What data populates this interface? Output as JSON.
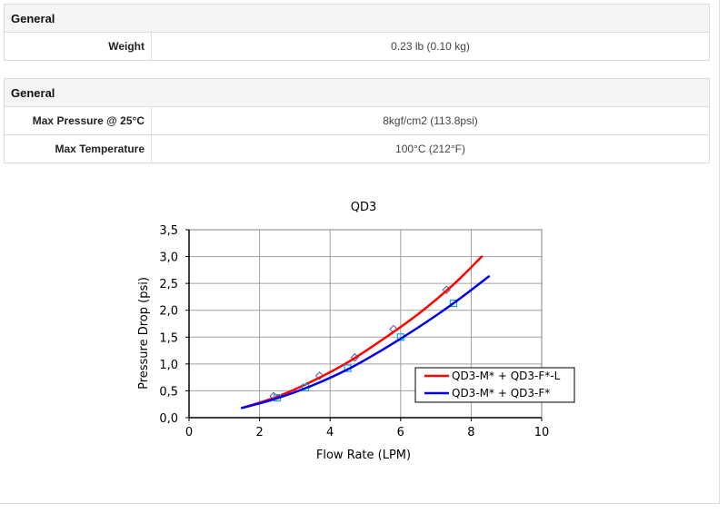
{
  "sections": [
    {
      "title": "General",
      "rows": [
        {
          "label": "Weight",
          "value": "0.23 lb (0.10 kg)"
        }
      ]
    },
    {
      "title": "General",
      "rows": [
        {
          "label": "Max Pressure @ 25°C",
          "value": "8kgf/cm2 (113.8psi)"
        },
        {
          "label": "Max Temperature",
          "value": "100°C (212°F)"
        }
      ]
    }
  ],
  "chart_data": {
    "type": "line",
    "title": "QD3",
    "xlabel": "Flow Rate (LPM)",
    "ylabel": "Pressure Drop  (psi)",
    "xlim": [
      0,
      10
    ],
    "ylim": [
      0.0,
      3.5
    ],
    "x_ticks": [
      "0",
      "2",
      "4",
      "6",
      "8",
      "10"
    ],
    "y_ticks": [
      "0,0",
      "0,5",
      "1,0",
      "1,5",
      "2,0",
      "2,5",
      "3,0",
      "3,5"
    ],
    "grid": true,
    "legend_position": "lower right inside",
    "series": [
      {
        "name": "QD3-M* + QD3-F*-L",
        "color": "#ff0000",
        "curve": {
          "x": [
            1.5,
            2.5,
            3.5,
            4.5,
            5.5,
            6.5,
            7.5,
            8.3
          ],
          "y": [
            0.18,
            0.39,
            0.68,
            1.03,
            1.46,
            1.93,
            2.48,
            3.0
          ]
        },
        "markers": {
          "shape": "diamond",
          "color": "#5555aa",
          "x": [
            2.4,
            3.7,
            4.7,
            5.8,
            7.3
          ],
          "y": [
            0.4,
            0.78,
            1.12,
            1.65,
            2.38
          ]
        }
      },
      {
        "name": "QD3-M* + QD3-F*",
        "color": "#0000ee",
        "curve": {
          "x": [
            1.5,
            2.5,
            3.5,
            4.5,
            5.5,
            6.5,
            7.5,
            8.5
          ],
          "y": [
            0.18,
            0.36,
            0.6,
            0.9,
            1.27,
            1.68,
            2.13,
            2.63
          ]
        },
        "markers": {
          "shape": "square",
          "color": "#00aaee",
          "x": [
            2.5,
            3.3,
            4.5,
            6.0,
            7.5
          ],
          "y": [
            0.37,
            0.56,
            0.92,
            1.5,
            2.13
          ]
        }
      }
    ]
  }
}
